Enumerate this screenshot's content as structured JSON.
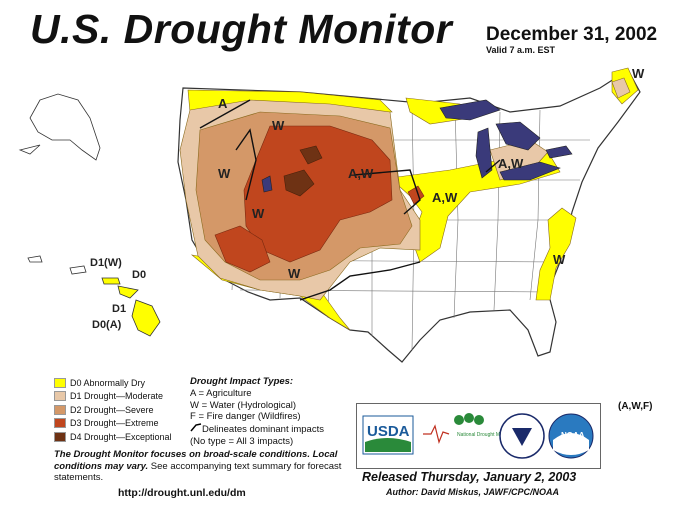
{
  "header": {
    "title": "U.S. Drought Monitor",
    "date": "December 31, 2002",
    "valid": "Valid 7 a.m. EST"
  },
  "map_labels": {
    "impact_a": "A",
    "impact_w": "W",
    "impact_aw": "A,W",
    "hawaii_d1w": "D1(W)",
    "hawaii_d0": "D0",
    "hawaii_d1": "D1",
    "hawaii_d0a": "D0(A)",
    "puerto_rico": "(A,W,F)"
  },
  "legend": {
    "items": [
      {
        "label": "D0 Abnormally Dry",
        "color": "#FFFF00"
      },
      {
        "label": "D1 Drought—Moderate",
        "color": "#E8C8A8"
      },
      {
        "label": "D2 Drought—Severe",
        "color": "#D49868"
      },
      {
        "label": "D3 Drought—Extreme",
        "color": "#C0461E"
      },
      {
        "label": "D4 Drought—Exceptional",
        "color": "#6E3214"
      }
    ]
  },
  "impact_types": {
    "title": "Drought  Impact  Types:",
    "agriculture": "A = Agriculture",
    "water": "W = Water (Hydrological)",
    "fire": "F = Fire danger (Wildfires)",
    "delineates": "Delineates dominant impacts",
    "no_type": "(No type = All 3 impacts)"
  },
  "summary": {
    "bold": "The Drought Monitor focuses on broad-scale conditions. Local conditions may vary.",
    "rest": " See accompanying text summary for forecast statements."
  },
  "url": "http://drought.unl.edu/dm",
  "logos": {
    "usda": "USDA",
    "ndmc": "National Drought Mitigation Center",
    "noaa": "NOAA"
  },
  "released": "Released Thursday, January 2, 2003",
  "author": "Author:  David Miskus, JAWF/CPC/NOAA"
}
